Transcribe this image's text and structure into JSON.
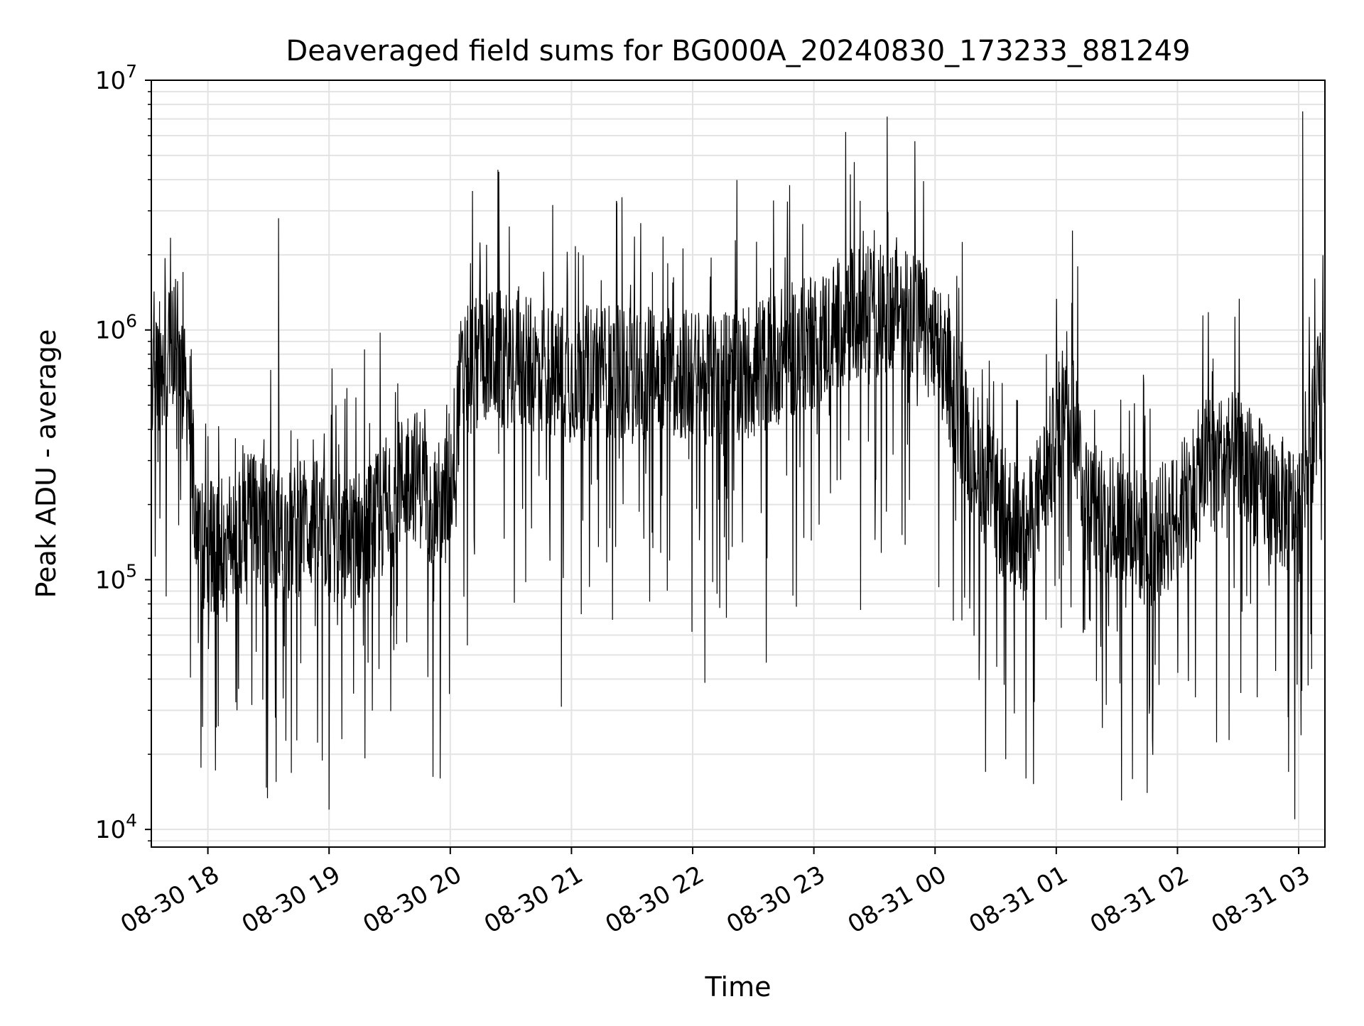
{
  "chart_data": {
    "type": "line",
    "title": "Deaveraged field sums for BG000A_20240830_173233_881249",
    "xlabel": "Time",
    "ylabel": "Peak ADU - average",
    "yscale": "log",
    "ylim": [
      8500,
      10000000
    ],
    "xlim": [
      "2024-08-30 17:32",
      "2024-08-31 03:13"
    ],
    "grid": true,
    "legend": "none",
    "line_color": "#000000",
    "x_ticks": [
      "2024-08-30 18:00",
      "2024-08-30 19:00",
      "2024-08-30 20:00",
      "2024-08-30 21:00",
      "2024-08-30 22:00",
      "2024-08-30 23:00",
      "2024-08-31 00:00",
      "2024-08-31 01:00",
      "2024-08-31 02:00",
      "2024-08-31 03:00"
    ],
    "x_tick_labels": [
      "08-30 18",
      "08-30 19",
      "08-30 20",
      "08-30 21",
      "08-30 22",
      "08-30 23",
      "08-31 00",
      "08-31 01",
      "08-31 02",
      "08-31 03"
    ],
    "y_ticks": [
      10000,
      100000,
      1000000,
      10000000
    ],
    "y_tick_labels": [
      {
        "base": "10",
        "exp": "4"
      },
      {
        "base": "10",
        "exp": "5"
      },
      {
        "base": "10",
        "exp": "6"
      },
      {
        "base": "10",
        "exp": "7"
      }
    ],
    "series": [
      {
        "x": [
          "2024-08-30 17:32",
          "2024-08-30 17:40",
          "2024-08-30 17:45",
          "2024-08-30 17:50",
          "2024-08-30 17:55",
          "2024-08-30 18:00",
          "2024-08-30 18:10",
          "2024-08-30 18:20",
          "2024-08-30 18:30",
          "2024-08-30 18:40",
          "2024-08-30 18:50",
          "2024-08-30 19:00",
          "2024-08-30 19:10",
          "2024-08-30 19:20",
          "2024-08-30 19:30",
          "2024-08-30 19:40",
          "2024-08-30 19:50",
          "2024-08-30 19:55",
          "2024-08-30 20:00",
          "2024-08-30 20:05",
          "2024-08-30 20:15",
          "2024-08-30 20:30",
          "2024-08-30 20:45",
          "2024-08-30 21:00",
          "2024-08-30 21:15",
          "2024-08-30 21:30",
          "2024-08-30 21:45",
          "2024-08-30 22:00",
          "2024-08-30 22:15",
          "2024-08-30 22:30",
          "2024-08-30 22:45",
          "2024-08-30 23:00",
          "2024-08-30 23:15",
          "2024-08-30 23:30",
          "2024-08-30 23:45",
          "2024-08-30 23:55",
          "2024-08-31 00:05",
          "2024-08-31 00:15",
          "2024-08-31 00:30",
          "2024-08-31 00:45",
          "2024-08-31 01:00",
          "2024-08-31 01:05",
          "2024-08-31 01:10",
          "2024-08-31 01:15",
          "2024-08-31 01:30",
          "2024-08-31 01:45",
          "2024-08-31 02:00",
          "2024-08-31 02:15",
          "2024-08-31 02:30",
          "2024-08-31 02:45",
          "2024-08-31 03:00",
          "2024-08-31 03:05",
          "2024-08-31 03:13"
        ],
        "y": [
          600000,
          800000,
          900000,
          500000,
          150000,
          130000,
          140000,
          180000,
          160000,
          150000,
          170000,
          150000,
          140000,
          160000,
          200000,
          280000,
          220000,
          190000,
          230000,
          600000,
          800000,
          750000,
          700000,
          650000,
          700000,
          650000,
          700000,
          650000,
          650000,
          700000,
          800000,
          900000,
          1100000,
          1200000,
          1300000,
          1000000,
          700000,
          400000,
          200000,
          150000,
          350000,
          600000,
          400000,
          200000,
          180000,
          140000,
          180000,
          300000,
          300000,
          220000,
          180000,
          400000,
          600000
        ],
        "spikes_high": [
          {
            "x": "2024-08-30 18:35",
            "y": 2800000
          },
          {
            "x": "2024-08-30 20:24",
            "y": 4300000
          },
          {
            "x": "2024-08-30 21:25",
            "y": 3400000
          },
          {
            "x": "2024-08-30 22:40",
            "y": 3300000
          },
          {
            "x": "2024-08-30 22:48",
            "y": 3800000
          },
          {
            "x": "2024-08-30 23:20",
            "y": 4700000
          },
          {
            "x": "2024-08-30 23:50",
            "y": 5700000
          },
          {
            "x": "2024-08-31 01:08",
            "y": 2500000
          },
          {
            "x": "2024-08-31 03:02",
            "y": 7500000
          }
        ],
        "spikes_low": [
          {
            "x": "2024-08-30 19:00",
            "y": 12000
          },
          {
            "x": "2024-08-30 19:55",
            "y": 16000
          },
          {
            "x": "2024-08-30 20:55",
            "y": 31000
          },
          {
            "x": "2024-08-31 00:25",
            "y": 17000
          },
          {
            "x": "2024-08-31 00:45",
            "y": 16000
          },
          {
            "x": "2024-08-31 01:45",
            "y": 14000
          },
          {
            "x": "2024-08-31 02:55",
            "y": 17000
          }
        ]
      }
    ]
  }
}
